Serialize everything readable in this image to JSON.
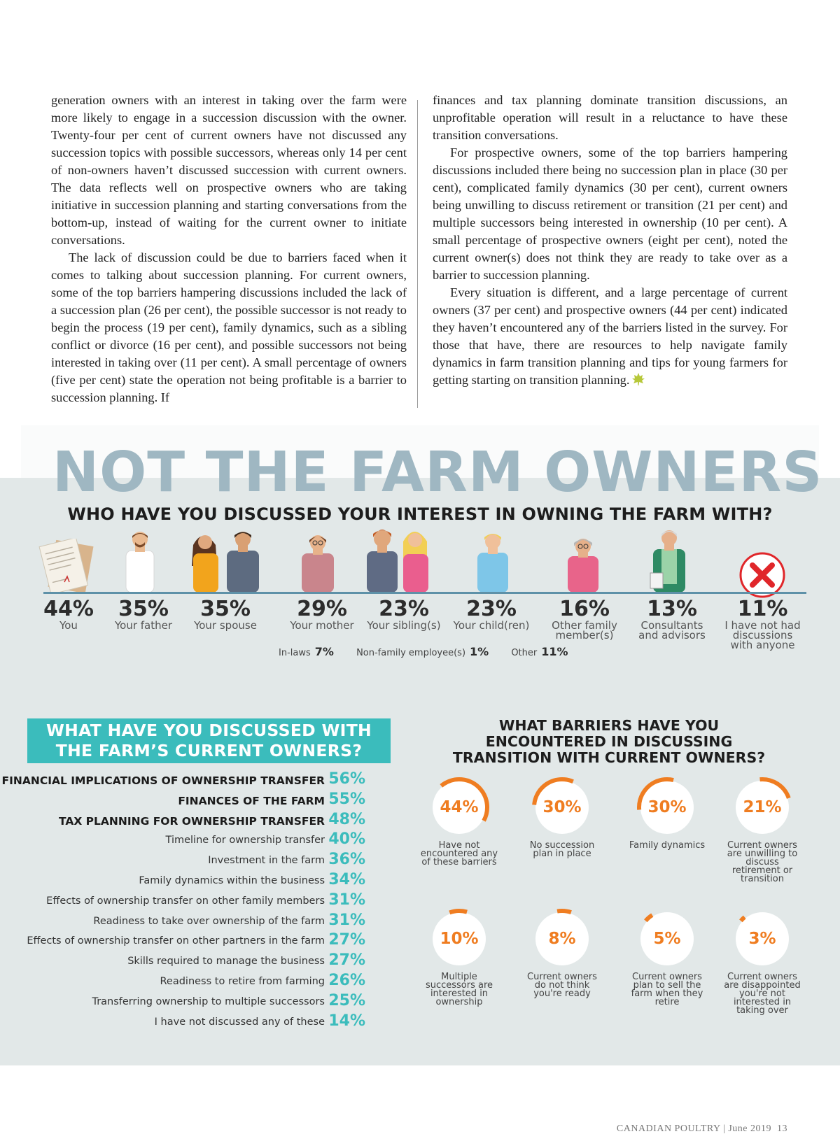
{
  "article": {
    "left_paragraphs": [
      "generation owners with an interest in taking over the farm were more likely to engage in a succession discussion with the owner. Twenty-four per cent of current owners have not discussed any succession topics with possible successors, whereas only 14 per cent of non-owners haven’t discussed succession with current owners. The data reflects well on prospective owners who are taking initiative in succession planning and starting conversations from the bottom-up, instead of waiting for the current owner to initiate conversations.",
      "The lack of discussion could be due to barriers faced when it comes to talking about succession planning. For current owners, some of the top barriers hampering discussions included the lack of a succession plan (26 per cent), the possible successor is not ready to begin the process (19 per cent), family dynamics, such as a sibling conflict or divorce (16 per cent), and possible successors not being interested in taking over (11 per cent). A small percentage of owners (five per cent) state the operation not being profitable is a barrier to succession planning. If"
    ],
    "right_paragraphs": [
      "finances and tax planning dominate transition discussions, an unprofitable operation will result in a reluctance to have these transition conversations.",
      "For prospective owners, some of the top barriers hampering discussions included there being no succession plan in place (30 per cent), complicated family dynamics (30 per cent), current owners being unwilling to discuss retirement or transition (21 per cent) and multiple successors being interested in ownership (10 per cent). A small percentage of prospective owners (eight per cent), noted the current owner(s) does not think they are ready to take over as a barrier to succession planning.",
      "Every situation is different, and a large percentage of current owners (37 per cent) and prospective owners (44 per cent) indicated they haven’t encountered any of the barriers listed in the survey. For those that have, there are resources to help navigate family dynamics in farm transition planning and tips for young farmers for getting starting on transition planning."
    ]
  },
  "infographic": {
    "title": "NOT THE FARM OWNERS",
    "question1": "WHO HAVE YOU DISCUSSED YOUR INTEREST IN OWNING THE FARM WITH?",
    "who": [
      {
        "pct": "44%",
        "label": "You",
        "icon": "document-icon"
      },
      {
        "pct": "35%",
        "label": "Your father",
        "icon": "father-icon"
      },
      {
        "pct": "35%",
        "label": "Your spouse",
        "icon": "spouse-icon"
      },
      {
        "pct": "29%",
        "label": "Your mother",
        "icon": "mother-icon"
      },
      {
        "pct": "23%",
        "label": "Your sibling(s)",
        "icon": "siblings-icon"
      },
      {
        "pct": "23%",
        "label": "Your child(ren)",
        "icon": "child-icon"
      },
      {
        "pct": "16%",
        "label": "Other family member(s)",
        "icon": "family-member-icon"
      },
      {
        "pct": "13%",
        "label": "Consultants and advisors",
        "icon": "consultant-icon"
      },
      {
        "pct": "11%",
        "label": "I have not had discussions with anyone",
        "icon": "x-icon"
      }
    ],
    "minor": [
      {
        "label": "In-laws",
        "pct": "7%"
      },
      {
        "label": "Non-family employee(s)",
        "pct": "1%"
      },
      {
        "label": "Other",
        "pct": "11%"
      }
    ],
    "discussed_title": "WHAT HAVE YOU DISCUSSED WITH THE FARM’S CURRENT OWNERS?",
    "discussed": [
      {
        "label": "FINANCIAL IMPLICATIONS OF OWNERSHIP TRANSFER",
        "pct": "56%",
        "strong": true
      },
      {
        "label": "FINANCES OF THE FARM",
        "pct": "55%",
        "strong": true
      },
      {
        "label": "TAX PLANNING FOR OWNERSHIP TRANSFER",
        "pct": "48%",
        "strong": true
      },
      {
        "label": "Timeline for ownership transfer",
        "pct": "40%"
      },
      {
        "label": "Investment in the farm",
        "pct": "36%"
      },
      {
        "label": "Family dynamics within the business",
        "pct": "34%"
      },
      {
        "label": "Effects of ownership transfer on other family members",
        "pct": "31%"
      },
      {
        "label": "Readiness to take over ownership of the farm",
        "pct": "31%"
      },
      {
        "label": "Effects of ownership transfer on other partners in the farm",
        "pct": "27%"
      },
      {
        "label": "Skills required to manage the business",
        "pct": "27%"
      },
      {
        "label": "Readiness to retire from farming",
        "pct": "26%"
      },
      {
        "label": "Transferring ownership to multiple successors",
        "pct": "25%"
      },
      {
        "label": "I have not discussed any of these",
        "pct": "14%"
      }
    ],
    "barriers_title": "WHAT BARRIERS HAVE YOU ENCOUNTERED IN DISCUSSING TRANSITION WITH CURRENT OWNERS?",
    "barriers": [
      {
        "pct": "44%",
        "value": 44,
        "label": "Have not encountered any of these barriers"
      },
      {
        "pct": "30%",
        "value": 30,
        "label": "No succession plan in place"
      },
      {
        "pct": "30%",
        "value": 30,
        "label": "Family dynamics"
      },
      {
        "pct": "21%",
        "value": 21,
        "label": "Current owners are unwilling to discuss retirement or transition"
      },
      {
        "pct": "10%",
        "value": 10,
        "label": "Multiple successors are interested in ownership"
      },
      {
        "pct": "8%",
        "value": 8,
        "label": "Current owners do not think you're ready"
      },
      {
        "pct": "5%",
        "value": 5,
        "label": "Current owners plan to sell the farm when they retire"
      },
      {
        "pct": "3%",
        "value": 3,
        "label": "Current owners are disappointed you're not interested in taking over"
      }
    ],
    "colors": {
      "teal": "#3bbcbc",
      "orange": "#ef7d21",
      "title_gray": "#9fb7c2",
      "panel": "#e2e8e8"
    }
  },
  "footer": {
    "text": "CANADIAN POULTRY | June 2019",
    "page": "13"
  }
}
